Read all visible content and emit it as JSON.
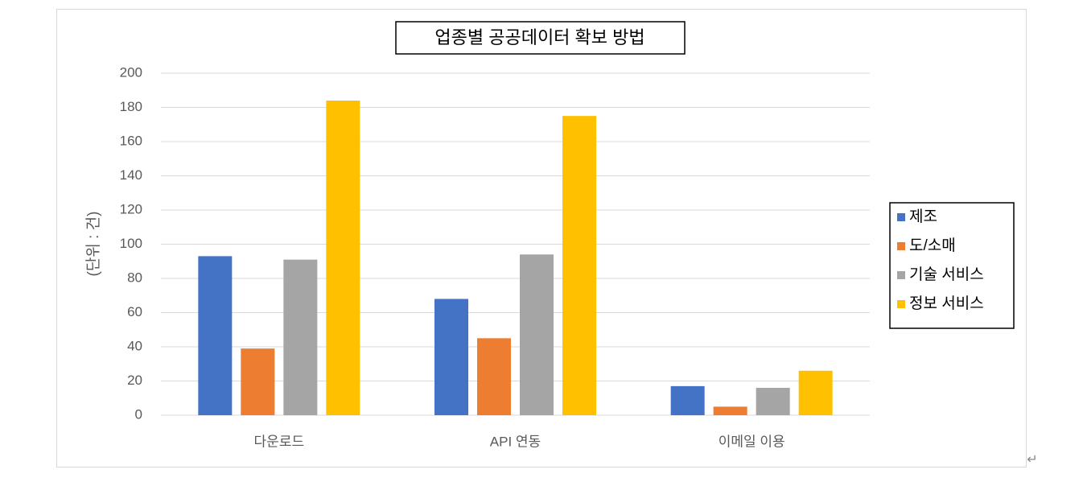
{
  "chart_data": {
    "type": "bar",
    "title": "업종별 공공데이터 확보 방법",
    "y_label": "(단위 : 건)",
    "categories": [
      "다운로드",
      "API 연동",
      "이메일 이용"
    ],
    "series": [
      {
        "name": "제조",
        "color": "#4472c4",
        "values": [
          93,
          68,
          17
        ]
      },
      {
        "name": "도/소매",
        "color": "#ed7d31",
        "values": [
          39,
          45,
          5
        ]
      },
      {
        "name": "기술 서비스",
        "color": "#a5a5a5",
        "values": [
          91,
          94,
          16
        ]
      },
      {
        "name": "정보 서비스",
        "color": "#ffc000",
        "values": [
          184,
          175,
          26
        ]
      }
    ],
    "ylim": [
      0,
      200
    ],
    "yticks": [
      0,
      20,
      40,
      60,
      80,
      100,
      120,
      140,
      160,
      180,
      200
    ],
    "grid": true,
    "legend": "right"
  },
  "paragraph_mark": "↵"
}
